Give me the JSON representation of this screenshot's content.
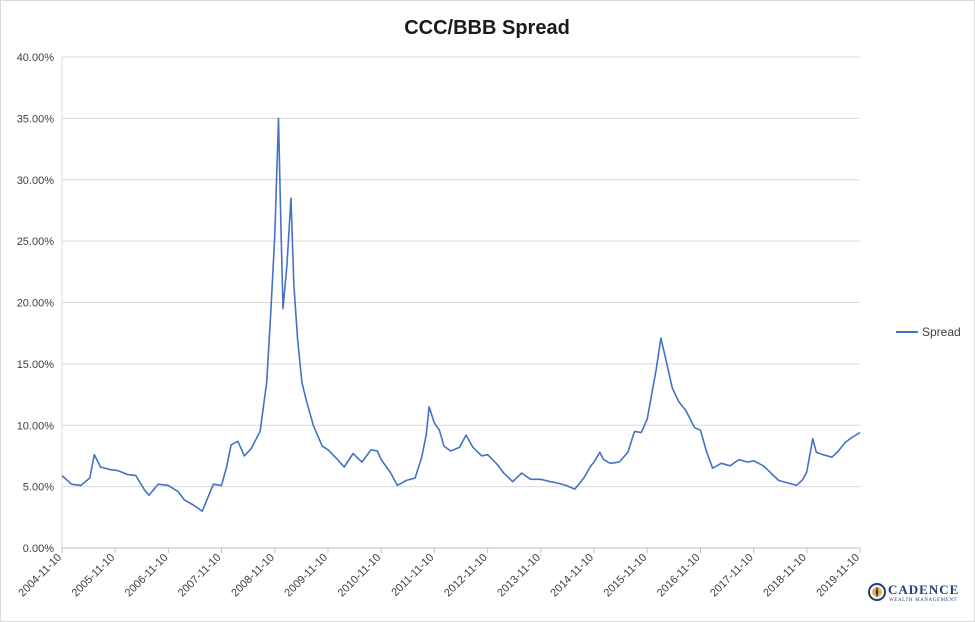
{
  "chart_data": {
    "type": "line",
    "title": "CCC/BBB Spread",
    "xlabel": "",
    "ylabel": "",
    "ylim": [
      0,
      40
    ],
    "y_ticks": [
      "0.00%",
      "5.00%",
      "10.00%",
      "15.00%",
      "20.00%",
      "25.00%",
      "30.00%",
      "35.00%",
      "40.00%"
    ],
    "x_ticks": [
      "2004-11-10",
      "2005-11-10",
      "2006-11-10",
      "2007-11-10",
      "2008-11-10",
      "2009-11-10",
      "2010-11-10",
      "2011-11-10",
      "2012-11-10",
      "2013-11-10",
      "2014-11-10",
      "2015-11-10",
      "2016-11-10",
      "2017-11-10",
      "2018-11-10",
      "2019-11-10"
    ],
    "x_range": [
      "2004-11-10",
      "2019-11-10"
    ],
    "grid": "horizontal",
    "legend_position": "right",
    "series": [
      {
        "name": "Spread",
        "color": "#4472c4",
        "points": [
          [
            "2004-11-10",
            5.9
          ],
          [
            "2005-01-15",
            5.2
          ],
          [
            "2005-03-20",
            5.1
          ],
          [
            "2005-05-20",
            5.7
          ],
          [
            "2005-06-20",
            7.6
          ],
          [
            "2005-08-01",
            6.6
          ],
          [
            "2005-10-01",
            6.4
          ],
          [
            "2005-12-01",
            6.3
          ],
          [
            "2006-02-01",
            6.0
          ],
          [
            "2006-04-01",
            5.9
          ],
          [
            "2006-06-01",
            4.7
          ],
          [
            "2006-07-01",
            4.3
          ],
          [
            "2006-09-01",
            5.2
          ],
          [
            "2006-11-10",
            5.1
          ],
          [
            "2007-01-15",
            4.6
          ],
          [
            "2007-03-01",
            3.9
          ],
          [
            "2007-05-01",
            3.5
          ],
          [
            "2007-07-01",
            3.0
          ],
          [
            "2007-08-01",
            3.9
          ],
          [
            "2007-09-15",
            5.2
          ],
          [
            "2007-11-10",
            5.1
          ],
          [
            "2007-12-15",
            6.6
          ],
          [
            "2008-01-15",
            8.4
          ],
          [
            "2008-03-01",
            8.7
          ],
          [
            "2008-04-15",
            7.5
          ],
          [
            "2008-06-01",
            8.1
          ],
          [
            "2008-08-01",
            9.5
          ],
          [
            "2008-09-15",
            13.5
          ],
          [
            "2008-10-15",
            19.5
          ],
          [
            "2008-11-10",
            25.5
          ],
          [
            "2008-12-05",
            35.0
          ],
          [
            "2008-12-20",
            27.0
          ],
          [
            "2009-01-05",
            19.5
          ],
          [
            "2009-02-01",
            23.0
          ],
          [
            "2009-03-01",
            28.5
          ],
          [
            "2009-03-20",
            21.5
          ],
          [
            "2009-04-15",
            17.0
          ],
          [
            "2009-05-15",
            13.5
          ],
          [
            "2009-06-15",
            12.0
          ],
          [
            "2009-08-01",
            10.0
          ],
          [
            "2009-10-01",
            8.3
          ],
          [
            "2009-11-10",
            8.0
          ],
          [
            "2010-01-15",
            7.2
          ],
          [
            "2010-03-01",
            6.6
          ],
          [
            "2010-05-01",
            7.7
          ],
          [
            "2010-07-01",
            7.0
          ],
          [
            "2010-09-01",
            8.0
          ],
          [
            "2010-10-15",
            7.9
          ],
          [
            "2010-11-10",
            7.2
          ],
          [
            "2011-01-15",
            6.1
          ],
          [
            "2011-03-01",
            5.1
          ],
          [
            "2011-05-01",
            5.5
          ],
          [
            "2011-07-01",
            5.7
          ],
          [
            "2011-08-15",
            7.4
          ],
          [
            "2011-09-15",
            9.2
          ],
          [
            "2011-10-05",
            11.5
          ],
          [
            "2011-11-10",
            10.2
          ],
          [
            "2011-12-15",
            9.6
          ],
          [
            "2012-01-15",
            8.3
          ],
          [
            "2012-03-01",
            7.9
          ],
          [
            "2012-05-01",
            8.2
          ],
          [
            "2012-06-15",
            9.2
          ],
          [
            "2012-08-01",
            8.2
          ],
          [
            "2012-10-01",
            7.5
          ],
          [
            "2012-11-10",
            7.6
          ],
          [
            "2013-01-15",
            6.8
          ],
          [
            "2013-03-01",
            6.1
          ],
          [
            "2013-05-01",
            5.4
          ],
          [
            "2013-07-01",
            6.1
          ],
          [
            "2013-09-01",
            5.6
          ],
          [
            "2013-11-10",
            5.6
          ],
          [
            "2014-01-15",
            5.4
          ],
          [
            "2014-03-01",
            5.3
          ],
          [
            "2014-05-01",
            5.1
          ],
          [
            "2014-07-01",
            4.8
          ],
          [
            "2014-09-01",
            5.7
          ],
          [
            "2014-10-20",
            6.7
          ],
          [
            "2014-11-10",
            7.0
          ],
          [
            "2014-12-20",
            7.8
          ],
          [
            "2015-01-15",
            7.2
          ],
          [
            "2015-03-01",
            6.9
          ],
          [
            "2015-05-01",
            7.0
          ],
          [
            "2015-07-01",
            7.8
          ],
          [
            "2015-08-15",
            9.5
          ],
          [
            "2015-10-01",
            9.4
          ],
          [
            "2015-11-10",
            10.5
          ],
          [
            "2016-01-10",
            14.5
          ],
          [
            "2016-02-12",
            17.1
          ],
          [
            "2016-03-20",
            15.2
          ],
          [
            "2016-05-01",
            13.0
          ],
          [
            "2016-06-15",
            11.9
          ],
          [
            "2016-08-01",
            11.2
          ],
          [
            "2016-10-01",
            9.8
          ],
          [
            "2016-11-10",
            9.6
          ],
          [
            "2016-12-20",
            7.9
          ],
          [
            "2017-02-01",
            6.5
          ],
          [
            "2017-04-01",
            6.9
          ],
          [
            "2017-06-01",
            6.7
          ],
          [
            "2017-08-01",
            7.2
          ],
          [
            "2017-10-01",
            7.0
          ],
          [
            "2017-11-10",
            7.1
          ],
          [
            "2018-01-15",
            6.7
          ],
          [
            "2018-03-01",
            6.2
          ],
          [
            "2018-05-01",
            5.5
          ],
          [
            "2018-07-01",
            5.3
          ],
          [
            "2018-09-01",
            5.1
          ],
          [
            "2018-10-15",
            5.6
          ],
          [
            "2018-11-10",
            6.2
          ],
          [
            "2018-12-20",
            8.9
          ],
          [
            "2019-01-15",
            7.8
          ],
          [
            "2019-03-01",
            7.6
          ],
          [
            "2019-05-01",
            7.4
          ],
          [
            "2019-06-15",
            7.9
          ],
          [
            "2019-08-01",
            8.6
          ],
          [
            "2019-09-15",
            9.0
          ],
          [
            "2019-11-10",
            9.4
          ]
        ]
      }
    ]
  },
  "logo": {
    "name": "CADENCE",
    "tagline": "WEALTH MANAGEMENT"
  }
}
